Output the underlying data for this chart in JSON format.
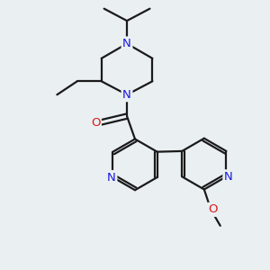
{
  "bg_color": "#eaeff2",
  "bond_color": "#1a1a1a",
  "nitrogen_color": "#1a1add",
  "oxygen_color": "#dd1a1a",
  "line_width": 1.6,
  "font_size_atom": 9.5,
  "fig_width": 3.0,
  "fig_height": 3.0,
  "dpi": 100,
  "xlim": [
    0,
    10
  ],
  "ylim": [
    0,
    10
  ]
}
